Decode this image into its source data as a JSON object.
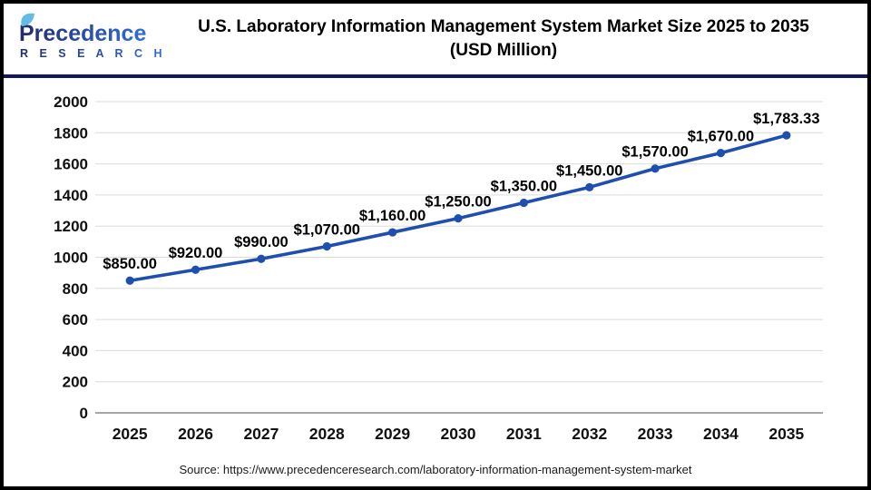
{
  "header": {
    "logo": {
      "name": "Precedence",
      "subname": "R E S E A R C H"
    },
    "title_line1": "U.S. Laboratory Information Management System Market Size 2025 to 2035",
    "title_line2": "(USD Million)"
  },
  "chart_data": {
    "type": "line",
    "title": "U.S. Laboratory Information Management System Market Size 2025 to 2035 (USD Million)",
    "categories": [
      "2025",
      "2026",
      "2027",
      "2028",
      "2029",
      "2030",
      "2031",
      "2032",
      "2033",
      "2034",
      "2035"
    ],
    "values": [
      850,
      920,
      990,
      1070,
      1160,
      1250,
      1350,
      1450,
      1570,
      1670,
      1783.33
    ],
    "point_labels": [
      "$850.00",
      "$920.00",
      "$990.00",
      "$1,070.00",
      "$1,160.00",
      "$1,250.00",
      "$1,350.00",
      "$1,450.00",
      "$1,570.00",
      "$1,670.00",
      "$1,783.33"
    ],
    "xlabel": "",
    "ylabel": "",
    "ylim": [
      0,
      2000
    ],
    "ytick_step": 200,
    "grid": true,
    "legend_position": "none",
    "line_color": "#1E4FAE",
    "marker": "circle"
  },
  "footer": {
    "source": "Source: https://www.precedenceresearch.com/laboratory-information-management-system-market"
  },
  "colors": {
    "separator_navy": "#141A4E",
    "line_blue": "#1E4FAE",
    "grid_gray": "#DCDCDC",
    "axis_gray": "#A6A6A6",
    "logo_dark": "#232A6C",
    "logo_light": "#2F6FD6",
    "logo_leaf": "#64BCE4"
  }
}
